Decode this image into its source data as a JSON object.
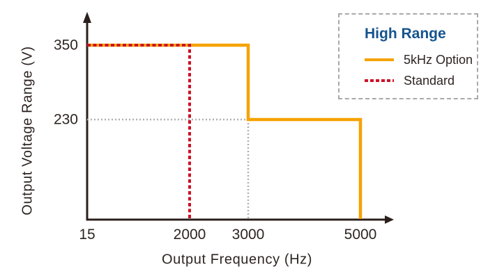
{
  "colors": {
    "background": "#FFFFFF",
    "axis": "#2B201D",
    "text": "#2E2421",
    "legend_title_blue": "#15548F",
    "legend_border_gray": "#A9A9A9",
    "orange": "#F6A200",
    "red": "#CC1126",
    "guide_gray": "#B0B0B0"
  },
  "chart_data": {
    "type": "line",
    "title": "",
    "xlabel": "Output Frequency (Hz)",
    "ylabel": "Output Voltage Range (V)",
    "x_ticks": [
      "15",
      "2000",
      "3000",
      "5000"
    ],
    "x_tick_values": [
      15,
      2000,
      3000,
      5000
    ],
    "y_ticks": [
      "350",
      "230"
    ],
    "y_tick_values": [
      350,
      230
    ],
    "xlim": [
      15,
      5600
    ],
    "ylim": [
      0,
      430
    ],
    "grid": "off",
    "legend": {
      "title": "High Range",
      "position": "top-right",
      "border_style": "dashed"
    },
    "series": [
      {
        "name": "5kHz Option",
        "color": "#F6A200",
        "style": "solid",
        "points": [
          [
            15,
            350
          ],
          [
            3000,
            350
          ],
          [
            3000,
            230
          ],
          [
            5000,
            230
          ],
          [
            5000,
            0
          ]
        ]
      },
      {
        "name": "Standard",
        "color": "#CC1126",
        "style": "dashed",
        "points": [
          [
            15,
            350
          ],
          [
            2000,
            350
          ],
          [
            2000,
            0
          ]
        ]
      }
    ],
    "reference_lines": [
      {
        "name": "guide-230v",
        "color": "#B0B0B0",
        "style": "dotted",
        "points": [
          [
            15,
            230
          ],
          [
            3000,
            230
          ]
        ]
      },
      {
        "name": "guide-3000hz",
        "color": "#B0B0B0",
        "style": "dotted",
        "points": [
          [
            3000,
            230
          ],
          [
            3000,
            0
          ]
        ]
      }
    ]
  }
}
